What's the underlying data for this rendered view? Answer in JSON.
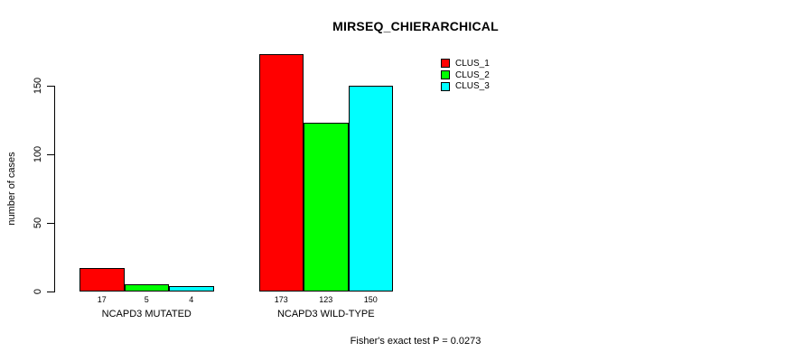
{
  "chart_data": {
    "type": "bar",
    "title": "MIRSEQ_CHIERARCHICAL",
    "ylabel": "number of cases",
    "xlabel": "",
    "categories": [
      "NCAPD3 MUTATED",
      "NCAPD3 WILD-TYPE"
    ],
    "series": [
      {
        "name": "CLUS_1",
        "color": "#ff0000",
        "values": [
          17,
          173
        ]
      },
      {
        "name": "CLUS_2",
        "color": "#00ff00",
        "values": [
          5,
          123
        ]
      },
      {
        "name": "CLUS_3",
        "color": "#00ffff",
        "values": [
          4,
          150
        ]
      }
    ],
    "yticks": [
      0,
      50,
      100,
      150
    ],
    "ylim": [
      0,
      150
    ],
    "bar_value_labels": [
      [
        "17",
        "5",
        "4"
      ],
      [
        "173",
        "123",
        "150"
      ]
    ],
    "legend_position": "top-right",
    "grid": false,
    "annotation": "Fisher's exact test P = 0.0273"
  },
  "colors": {
    "background": "#ffffff",
    "axis": "#000000",
    "text": "#000000"
  }
}
